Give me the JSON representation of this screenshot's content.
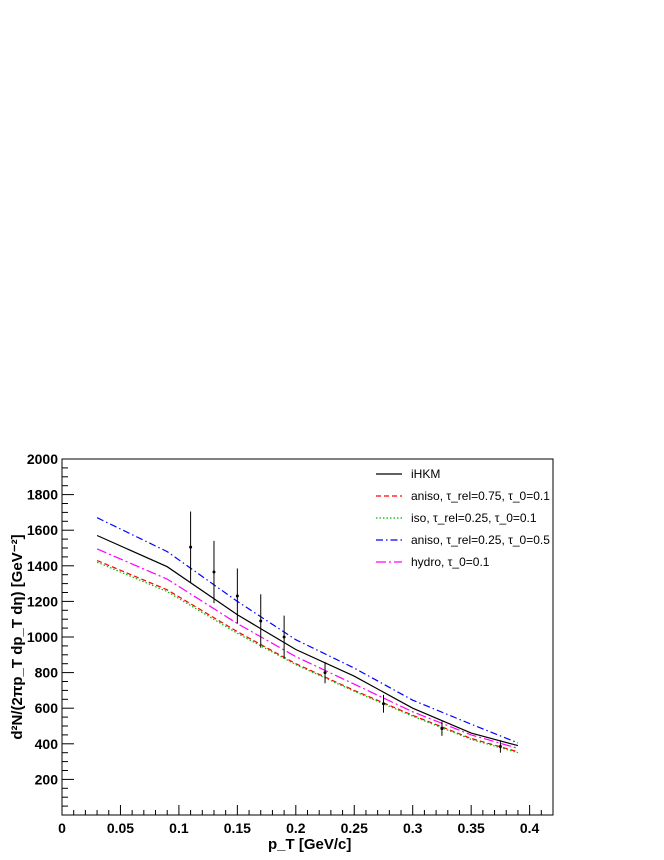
{
  "chart_data": {
    "type": "line",
    "title": "",
    "xlabel": "p_T [GeV/c]",
    "ylabel": "d²N/(2πp_T dp_T dη) [GeV⁻²]",
    "xlim": [
      0,
      0.42
    ],
    "ylim": [
      0,
      2000
    ],
    "xticks": [
      "0",
      "0.05",
      "0.1",
      "0.15",
      "0.2",
      "0.25",
      "0.3",
      "0.35",
      "0.4"
    ],
    "yticks": [
      "200",
      "400",
      "600",
      "800",
      "1000",
      "1200",
      "1400",
      "1600",
      "1800",
      "2000"
    ],
    "legend_position": "top-right",
    "series": [
      {
        "name": "iHKM",
        "color": "#000000",
        "style": "solid",
        "x": [
          0.03,
          0.09,
          0.15,
          0.2,
          0.25,
          0.3,
          0.35,
          0.39
        ],
        "y": [
          1570,
          1395,
          1125,
          930,
          780,
          600,
          460,
          390
        ]
      },
      {
        "name": "aniso, τ_rel=0.75, τ_0=0.1",
        "color": "#ff0000",
        "style": "dashed",
        "x": [
          0.03,
          0.09,
          0.15,
          0.2,
          0.25,
          0.3,
          0.35,
          0.39
        ],
        "y": [
          1430,
          1265,
          1030,
          850,
          700,
          560,
          430,
          355
        ]
      },
      {
        "name": "iso, τ_rel=0.25, τ_0=0.1",
        "color": "#00bb00",
        "style": "dotted",
        "x": [
          0.03,
          0.09,
          0.15,
          0.2,
          0.25,
          0.3,
          0.35,
          0.39
        ],
        "y": [
          1420,
          1255,
          1020,
          845,
          695,
          555,
          425,
          350
        ]
      },
      {
        "name": "aniso, τ_rel=0.25, τ_0=0.5",
        "color": "#0000ff",
        "style": "dashdot",
        "x": [
          0.03,
          0.09,
          0.15,
          0.2,
          0.25,
          0.3,
          0.35,
          0.39
        ],
        "y": [
          1670,
          1480,
          1200,
          985,
          825,
          645,
          510,
          405
        ]
      },
      {
        "name": "hydro, τ_0=0.1",
        "color": "#ff00ff",
        "style": "longdashdot",
        "x": [
          0.03,
          0.09,
          0.15,
          0.2,
          0.25,
          0.3,
          0.35,
          0.39
        ],
        "y": [
          1495,
          1325,
          1075,
          890,
          735,
          580,
          450,
          375
        ]
      }
    ],
    "data_points": {
      "name": "",
      "color": "#000000",
      "x": [
        0.11,
        0.13,
        0.15,
        0.17,
        0.19,
        0.225,
        0.275,
        0.325,
        0.375
      ],
      "y": [
        1505,
        1365,
        1230,
        1090,
        1000,
        800,
        625,
        485,
        385
      ],
      "err": [
        200,
        175,
        155,
        150,
        120,
        60,
        50,
        40,
        35
      ]
    }
  }
}
